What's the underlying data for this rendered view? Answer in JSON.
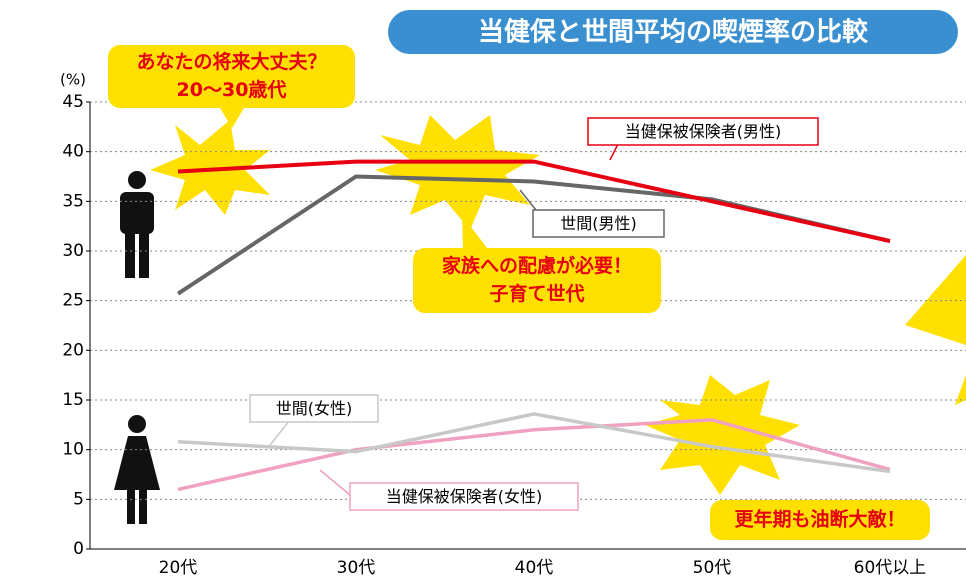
{
  "chart_data": {
    "type": "line",
    "title": "当健保と世間平均の喫煙率の比較",
    "ylabel": "(%)",
    "categories": [
      "20代",
      "30代",
      "40代",
      "50代",
      "60代以上"
    ],
    "series": [
      {
        "name": "当健保被保険者(男性)",
        "color": "#e60012",
        "values": [
          38,
          39,
          39,
          35,
          31
        ]
      },
      {
        "name": "世間(男性)",
        "color": "#666666",
        "values": [
          25.7,
          37.5,
          37,
          35.2,
          31
        ]
      },
      {
        "name": "世間(女性)",
        "color": "#c8c8c8",
        "values": [
          10.8,
          9.8,
          13.6,
          10.3,
          7.8
        ]
      },
      {
        "name": "当健保被保険者(女性)",
        "color": "#f0a0c0",
        "values": [
          6,
          10,
          12,
          13,
          8
        ]
      }
    ],
    "ylim": [
      0,
      45
    ],
    "yticks": [
      0,
      5,
      10,
      15,
      20,
      25,
      30,
      35,
      40,
      45
    ],
    "grid": true,
    "annotations": [
      [
        "あなたの将来大丈夫？",
        "20〜30歳代"
      ],
      [
        "家族への配慮が必要！",
        "子育て世代"
      ],
      [
        "更年期も油断大敵！"
      ]
    ]
  }
}
